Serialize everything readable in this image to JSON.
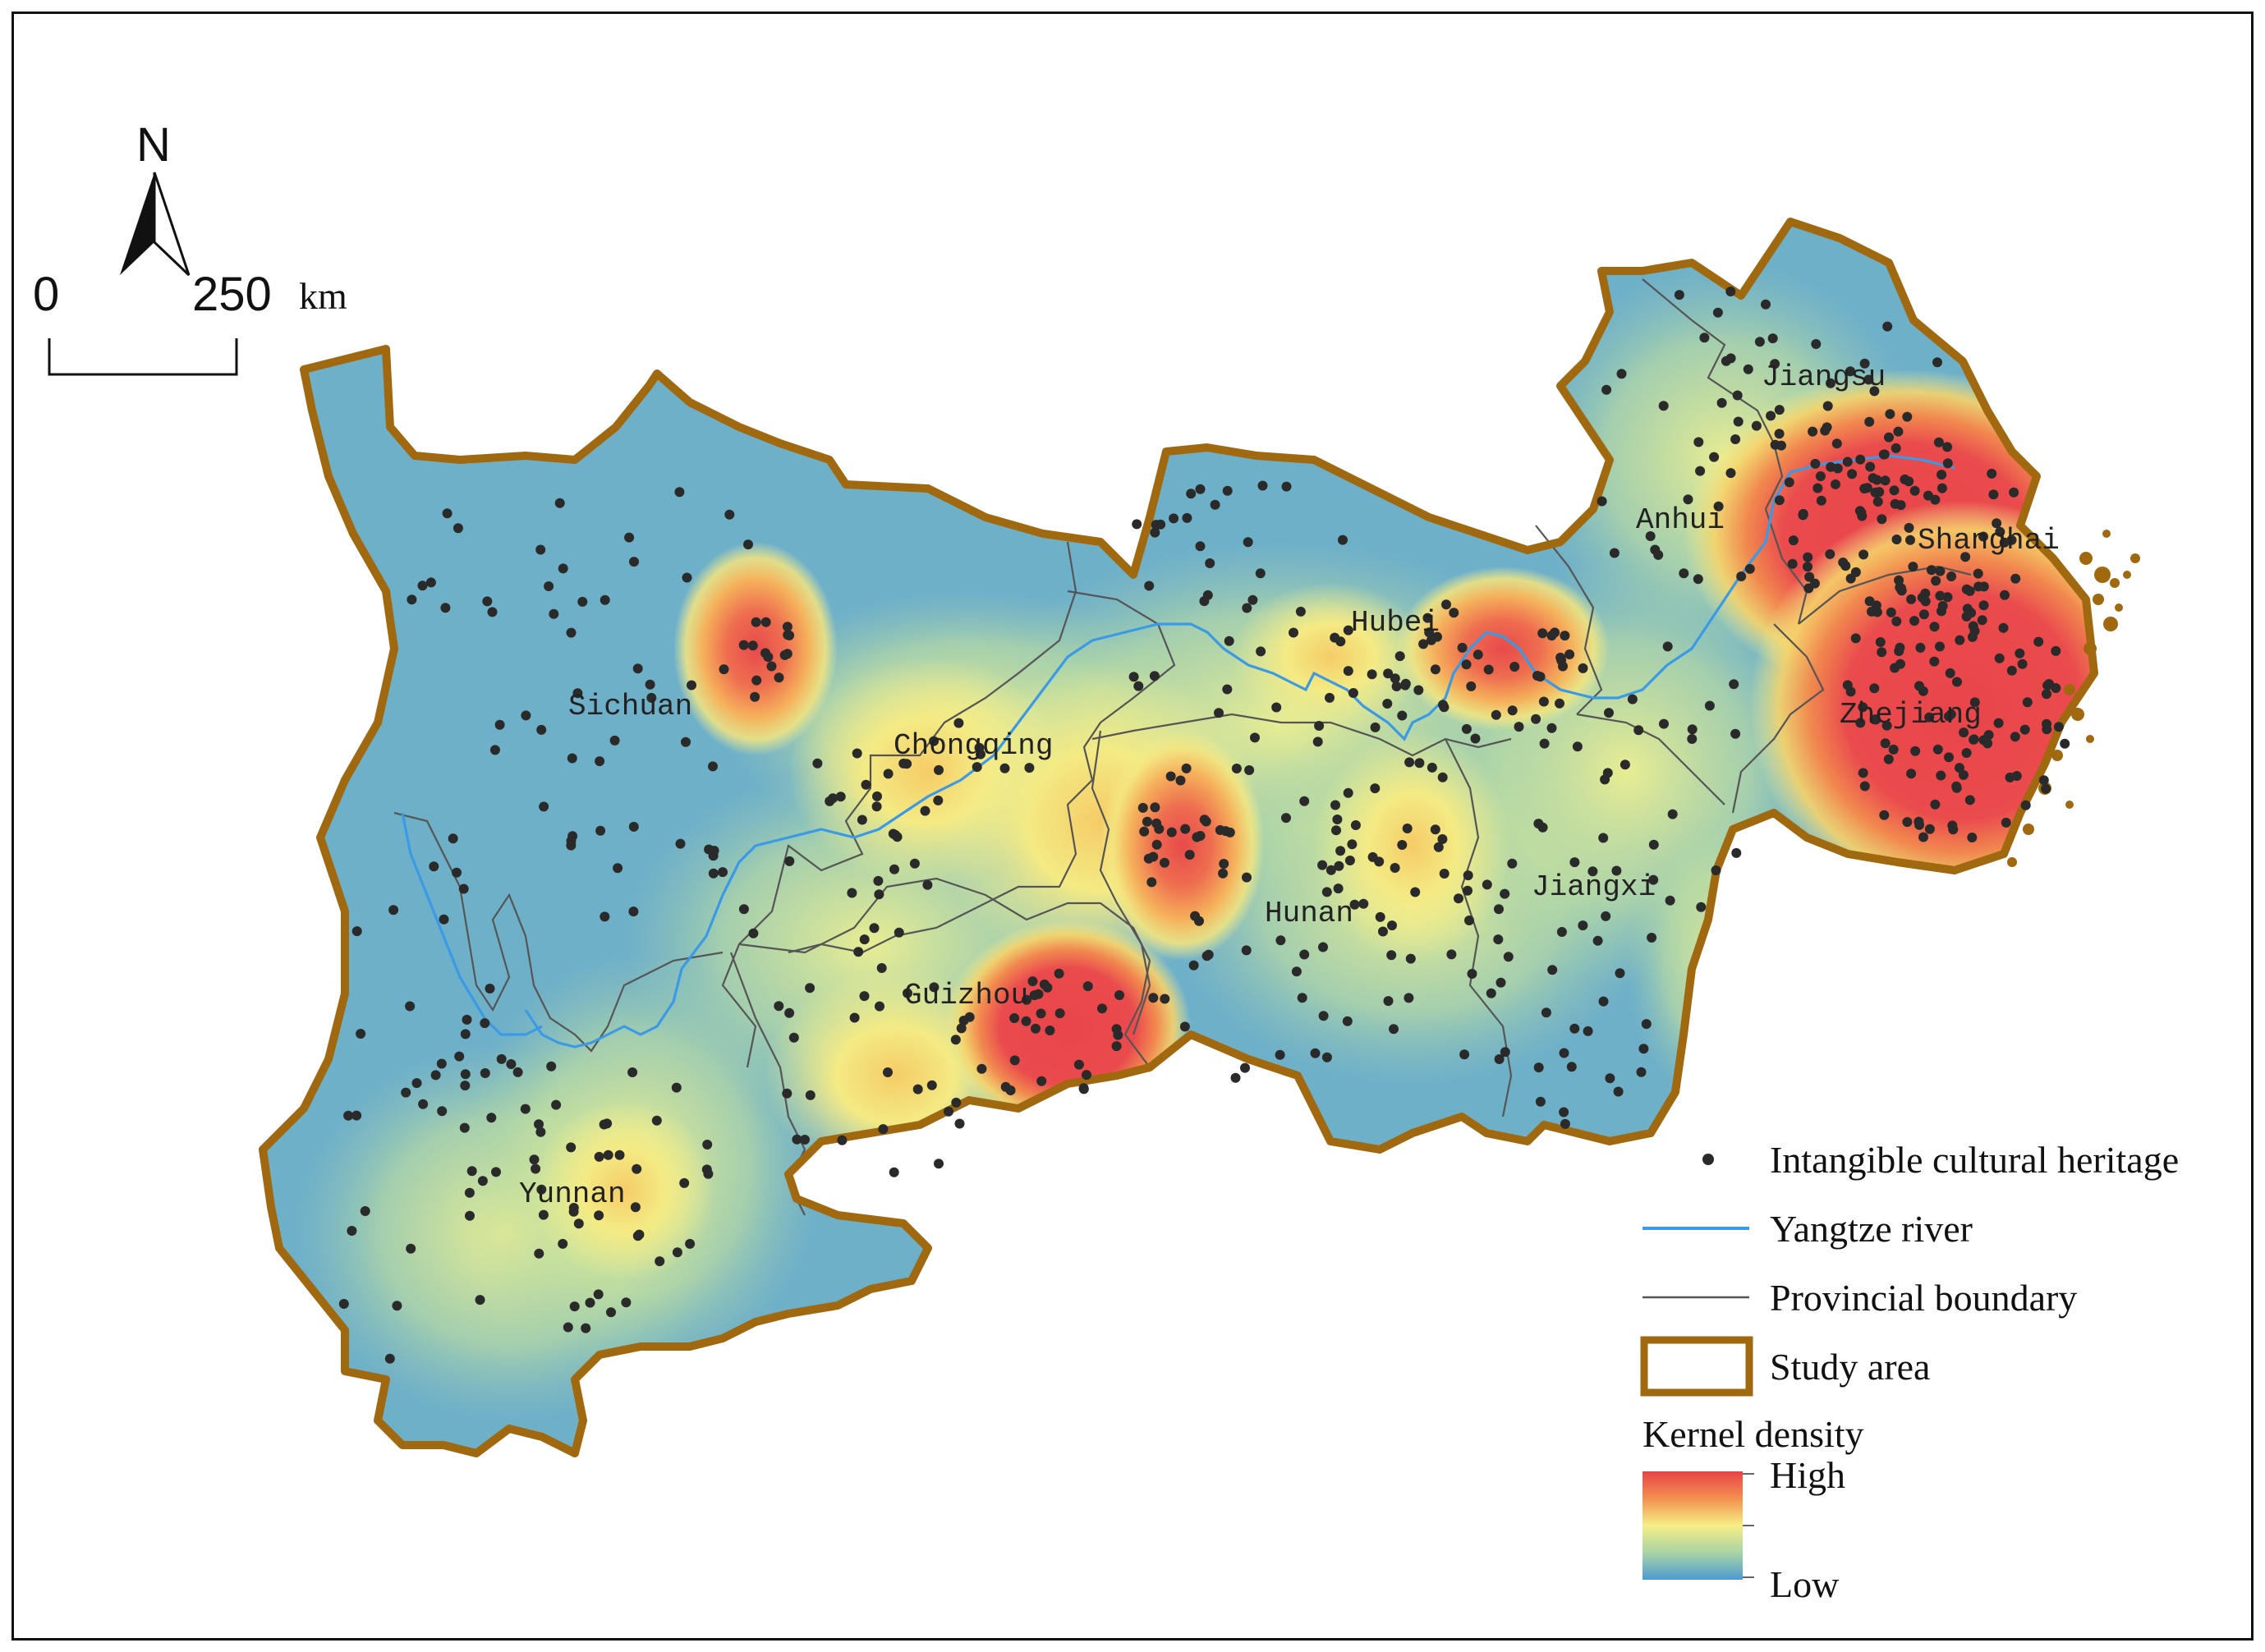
{
  "north_arrow": {
    "label": "N"
  },
  "scale_bar": {
    "start": "0",
    "end": "250",
    "unit": "km"
  },
  "provinces": [
    {
      "name": "Sichuan"
    },
    {
      "name": "Chongqing"
    },
    {
      "name": "Hubei"
    },
    {
      "name": "Anhui"
    },
    {
      "name": "Jiangsu"
    },
    {
      "name": "Shanghai"
    },
    {
      "name": "Zhejiang"
    },
    {
      "name": "Hunan"
    },
    {
      "name": "Jiangxi"
    },
    {
      "name": "Guizhou"
    },
    {
      "name": "Yunnan"
    }
  ],
  "legend": {
    "heritage": "Intangible cultural heritage",
    "river": "Yangtze river",
    "boundary": "Provincial boundary",
    "study_area": "Study area",
    "kernel_title": "Kernel density",
    "high": "High",
    "low": "Low"
  },
  "colors": {
    "study_area": "#a0680f",
    "river": "#3a9ae6",
    "boundary": "#555555",
    "point": "#2a2a2a",
    "density_low": "#4d9ccf",
    "density_mid": "#f3ef8f",
    "density_high": "#ea4b4d"
  }
}
